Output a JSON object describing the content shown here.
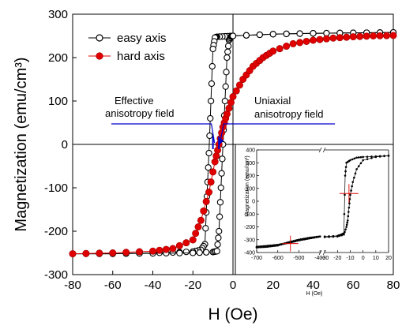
{
  "chart_data": [
    {
      "type": "line",
      "xlabel": "H (Oe)",
      "ylabel": "Magnetization (emu/cm³)",
      "xlim": [
        -80,
        80
      ],
      "ylim": [
        -300,
        300
      ],
      "xticks": [
        -80,
        -60,
        -40,
        -20,
        0,
        20,
        40,
        60,
        80
      ],
      "yticks": [
        -300,
        -200,
        -100,
        0,
        100,
        200,
        300
      ],
      "legend_position": "top-left",
      "legend": [
        "easy axis",
        "hard axis"
      ],
      "colors": {
        "easy": "#000000",
        "hard": "#e00000",
        "annotation": "#0000cc"
      },
      "series": [
        {
          "name": "easy axis",
          "marker": "open-circle",
          "branches": [
            {
              "x": [
                80,
                60,
                40,
                20,
                0,
                -4,
                -8,
                -9,
                -10,
                -11,
                -12,
                -13,
                -14,
                -16,
                -20,
                -30,
                -40,
                -60,
                -80
              ],
              "y": [
                258,
                257,
                256,
                254,
                250,
                249,
                248,
                246,
                220,
                100,
                -20,
                -120,
                -230,
                -243,
                -247,
                -249,
                -250,
                -252,
                -252
              ]
            },
            {
              "x": [
                -80,
                -60,
                -40,
                -20,
                -10,
                -8,
                -7,
                -6,
                -5,
                -4,
                -3,
                -2,
                -1,
                0,
                20,
                40,
                60,
                80
              ],
              "y": [
                -252,
                -252,
                -251,
                -250,
                -248,
                -246,
                -200,
                -100,
                0,
                100,
                200,
                240,
                248,
                250,
                254,
                256,
                257,
                258
              ]
            }
          ]
        },
        {
          "name": "hard axis",
          "marker": "filled-circle",
          "x": [
            -80,
            -60,
            -40,
            -30,
            -20,
            -16,
            -12,
            -9,
            -7,
            -5,
            -3,
            0,
            5,
            10,
            15,
            20,
            30,
            40,
            50,
            60,
            70,
            80
          ],
          "y": [
            -252,
            -250,
            -246,
            -240,
            -220,
            -175,
            -110,
            -40,
            0,
            40,
            70,
            110,
            150,
            180,
            200,
            215,
            232,
            240,
            245,
            248,
            250,
            251
          ]
        }
      ],
      "annotations": [
        {
          "text_lines": [
            "Effective",
            "anisotropy field"
          ],
          "x": -10
        },
        {
          "text_lines": [
            "Uniaxial",
            "anisotropy field"
          ],
          "x": -7
        }
      ]
    },
    {
      "type": "line",
      "position": "bottom-right inset",
      "xlabel": "H (Oe)",
      "ylabel": "Magnetization (emu/cm³)",
      "xbreak": true,
      "xticks": [
        "-700",
        "-600",
        "-500",
        "-400",
        "-30",
        "-20",
        "-10",
        "0",
        "10",
        "20"
      ],
      "yticks": [
        -400,
        -300,
        -200,
        -100,
        0,
        100,
        200,
        300,
        400
      ],
      "ylim": [
        -400,
        400
      ],
      "series": [
        {
          "name": "easy",
          "region": "left",
          "x": [
            -700,
            -650,
            -600,
            -550,
            -500,
            -450,
            -400
          ],
          "y": [
            -355,
            -348,
            -340,
            -325,
            -305,
            -290,
            -275
          ]
        },
        {
          "name": "hard",
          "region": "left",
          "x": [
            -700,
            -650,
            -600,
            -550,
            -500,
            -450,
            -400
          ],
          "y": [
            -360,
            -355,
            -345,
            -320,
            -300,
            -285,
            -275
          ]
        },
        {
          "name": "easy",
          "region": "right",
          "x": [
            -30,
            -20,
            -17,
            -15,
            -14,
            -13,
            -10,
            -5,
            0,
            10,
            20
          ],
          "y": [
            -275,
            -270,
            -260,
            -250,
            200,
            300,
            320,
            340,
            345,
            350,
            355
          ]
        },
        {
          "name": "hard",
          "region": "right",
          "x": [
            -30,
            -20,
            -15,
            -13,
            -12,
            -11,
            -10,
            -8,
            -5,
            0,
            10,
            20
          ],
          "y": [
            -280,
            -275,
            -260,
            -200,
            -150,
            -50,
            50,
            150,
            250,
            320,
            345,
            355
          ]
        }
      ],
      "crosshairs": [
        {
          "region": "left",
          "x": -540,
          "y": -330
        },
        {
          "region": "right",
          "x": -11,
          "y": 60
        }
      ]
    }
  ]
}
